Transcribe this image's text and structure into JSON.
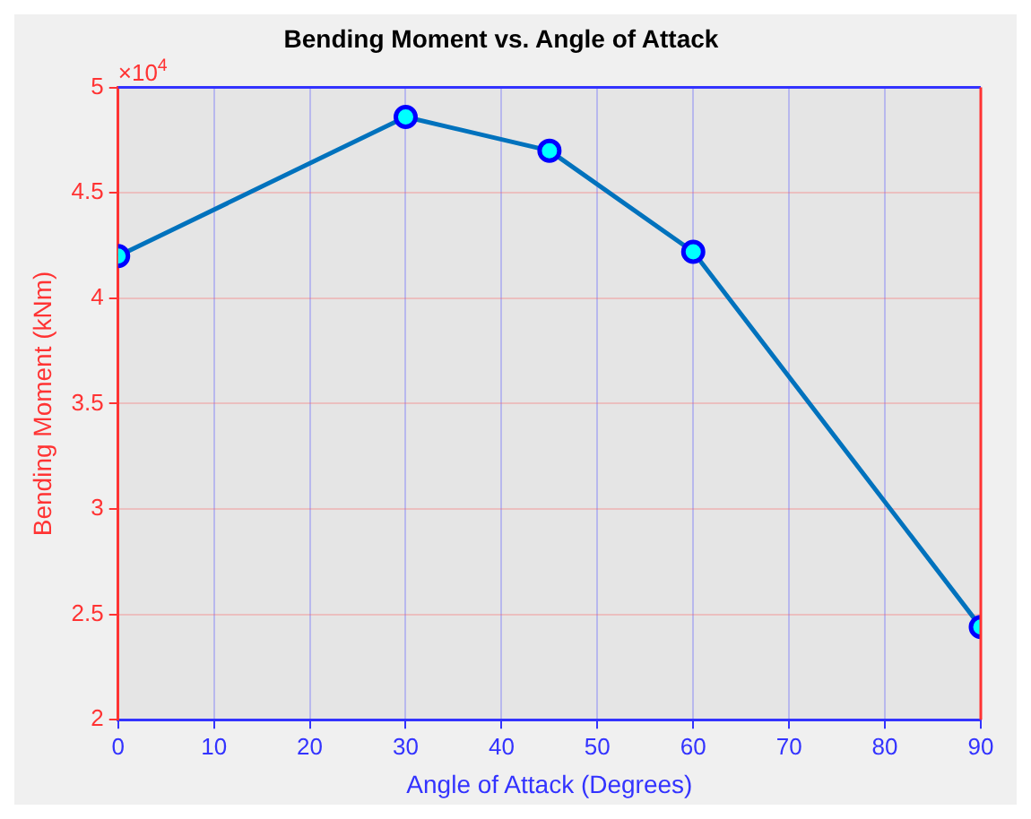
{
  "chart_data": {
    "type": "line",
    "title": "Bending Moment vs. Angle of Attack",
    "xlabel": "Angle of Attack (Degrees)",
    "ylabel": "Bending Moment (kNm)",
    "annotations": [
      "×10$^{4}$"
    ],
    "series": [
      {
        "color": "#0072bd",
        "x": [
          0,
          30,
          45,
          60,
          90
        ],
        "values": [
          4.2,
          4.86,
          4.7,
          4.22,
          2.44
        ]
      }
    ],
    "xlim": [
      0,
      90
    ],
    "xticks": [
      0,
      10,
      20,
      30,
      40,
      50,
      60,
      70,
      80,
      90
    ],
    "ylim": [
      2,
      5
    ],
    "yticks": [
      2,
      2.5,
      3,
      3.5,
      4,
      4.5,
      5
    ],
    "grid": true,
    "marker": "circle",
    "line_style": "solid",
    "legend": false
  }
}
